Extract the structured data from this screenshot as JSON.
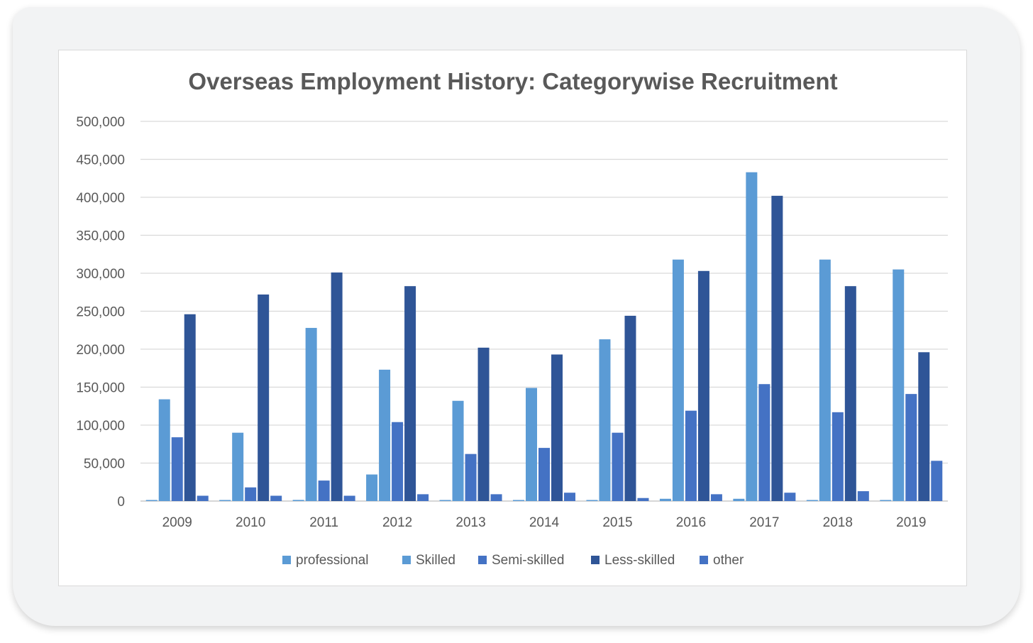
{
  "chart_data": {
    "type": "bar",
    "title": "Overseas Employment History: Categorywise Recruitment",
    "xlabel": "",
    "ylabel": "",
    "ylim": [
      0,
      500000
    ],
    "yticks": [
      "0",
      "50,000",
      "100,000",
      "150,000",
      "200,000",
      "250,000",
      "300,000",
      "350,000",
      "400,000",
      "450,000",
      "500,000"
    ],
    "categories": [
      "2009",
      "2010",
      "2011",
      "2012",
      "2013",
      "2014",
      "2015",
      "2016",
      "2017",
      "2018",
      "2019"
    ],
    "grid": true,
    "legend_position": "bottom",
    "series": [
      {
        "name": "professional",
        "color": "#5b9bd5",
        "values": [
          1000,
          1000,
          1500,
          35000,
          1000,
          1000,
          1000,
          3000,
          3000,
          1000,
          1000
        ]
      },
      {
        "name": "Skilled",
        "color": "#5b9bd5",
        "values": [
          134000,
          90000,
          228000,
          173000,
          132000,
          149000,
          213000,
          318000,
          433000,
          318000,
          305000
        ]
      },
      {
        "name": "Semi-skilled",
        "color": "#4472c4",
        "values": [
          84000,
          18000,
          27000,
          104000,
          62000,
          70000,
          90000,
          119000,
          154000,
          117000,
          141000
        ]
      },
      {
        "name": "Less-skilled",
        "color": "#2f5597",
        "values": [
          246000,
          272000,
          301000,
          283000,
          202000,
          193000,
          244000,
          303000,
          402000,
          283000,
          196000
        ]
      },
      {
        "name": "other",
        "color": "#4472c4",
        "values": [
          7000,
          7000,
          7000,
          9000,
          9000,
          11000,
          4000,
          9000,
          11000,
          13000,
          53000
        ]
      }
    ]
  }
}
